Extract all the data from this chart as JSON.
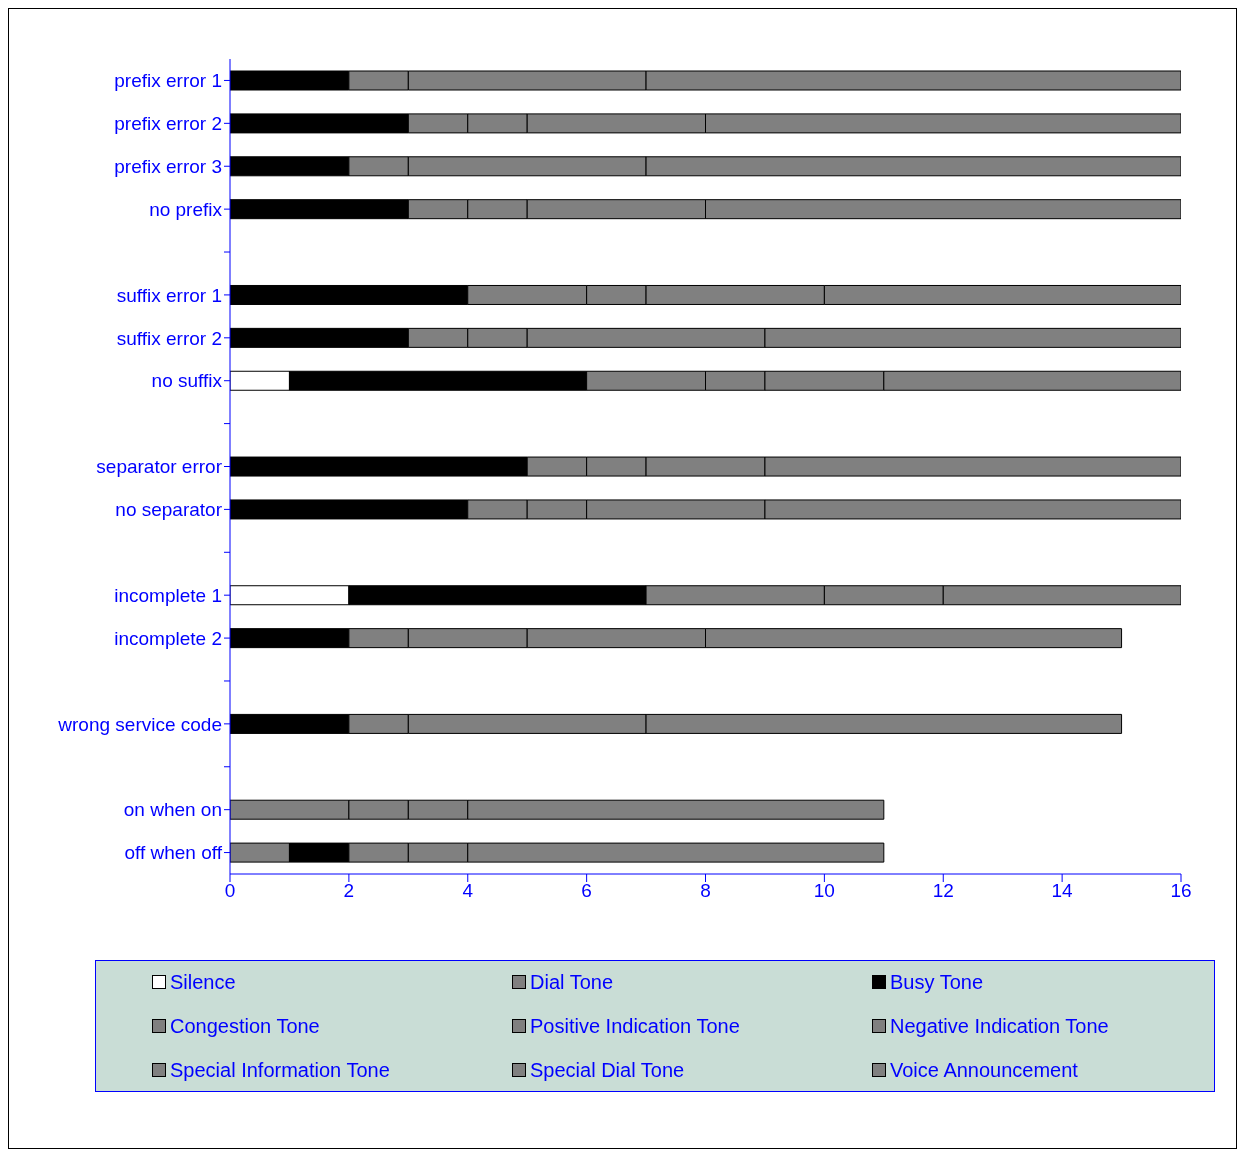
{
  "chart_data": {
    "type": "bar",
    "orientation": "horizontal",
    "stacked": true,
    "categories": [
      "prefix error 1",
      "prefix error 2",
      "prefix error 3",
      "no prefix",
      null,
      "suffix error 1",
      "suffix error 2",
      "no suffix",
      null,
      "separator error",
      "no separator",
      null,
      "incomplete 1",
      "incomplete 2",
      null,
      "wrong service code",
      null,
      "on when on",
      "off when off"
    ],
    "series": [
      {
        "name": "Silence",
        "color": "#ffffff",
        "values": [
          null,
          null,
          null,
          null,
          null,
          null,
          null,
          1,
          null,
          null,
          null,
          null,
          2,
          null,
          null,
          null,
          null,
          null,
          null
        ]
      },
      {
        "name": "Dial Tone",
        "color": "#808080",
        "values": [
          null,
          null,
          null,
          null,
          null,
          null,
          null,
          null,
          null,
          null,
          null,
          null,
          null,
          null,
          null,
          null,
          null,
          2,
          1
        ]
      },
      {
        "name": "Busy Tone",
        "color": "#000000",
        "values": [
          2,
          3,
          2,
          3,
          null,
          4,
          3,
          5,
          null,
          5,
          4,
          null,
          5,
          2,
          null,
          2,
          null,
          null,
          1
        ]
      },
      {
        "name": "Congestion Tone",
        "color": "#808080",
        "values": [
          1,
          1,
          1,
          1,
          null,
          2,
          1,
          2,
          null,
          1,
          1,
          null,
          3,
          1,
          null,
          1,
          null,
          1,
          1
        ]
      },
      {
        "name": "Positive Indication Tone",
        "color": "#808080",
        "values": [
          4,
          1,
          4,
          1,
          null,
          1,
          1,
          1,
          null,
          1,
          1,
          null,
          2,
          2,
          null,
          4,
          null,
          1,
          1
        ]
      },
      {
        "name": "Negative Indication Tone",
        "color": "#808080",
        "values": [
          9,
          3,
          9,
          3,
          null,
          3,
          4,
          2,
          null,
          2,
          3,
          null,
          4,
          3,
          null,
          8,
          null,
          7,
          7
        ]
      },
      {
        "name": "Special Information Tone",
        "color": "#808080",
        "values": [
          null,
          8,
          null,
          8,
          null,
          6,
          7,
          5,
          null,
          7,
          7,
          null,
          null,
          7,
          null,
          null,
          null,
          null,
          null
        ]
      },
      {
        "name": "Special Dial Tone",
        "color": "#808080",
        "values": [
          null,
          null,
          null,
          null,
          null,
          null,
          null,
          null,
          null,
          null,
          null,
          null,
          null,
          null,
          null,
          null,
          null,
          null,
          null
        ]
      },
      {
        "name": "Voice Announcement",
        "color": "#808080",
        "values": [
          null,
          null,
          null,
          null,
          null,
          null,
          null,
          null,
          null,
          null,
          null,
          null,
          null,
          null,
          null,
          null,
          null,
          null,
          null
        ]
      }
    ],
    "xlim": [
      0,
      16
    ],
    "xticks": [
      0,
      2,
      4,
      6,
      8,
      10,
      12,
      14,
      16
    ],
    "grid": false,
    "legend": "bottom"
  }
}
